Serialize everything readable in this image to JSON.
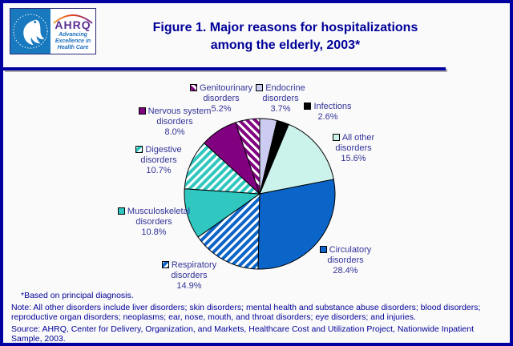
{
  "page": {
    "background": "#fafafa",
    "border_color": "#0000a0",
    "accent_navy": "#000099"
  },
  "logo": {
    "acronym": "AHRQ",
    "tagline_lines": [
      "Advancing",
      "Excellence in",
      "Health Care"
    ]
  },
  "title": {
    "line1": "Figure 1. Major reasons for hospitalizations",
    "line2": "among the elderly, 2003*"
  },
  "chart_data": {
    "type": "pie",
    "title": "Major reasons for hospitalizations among the elderly, 2003",
    "start_position": "12-o'clock, clockwise",
    "legend_position": "labels around pie with square markers",
    "slices": [
      {
        "id": "endocrine",
        "label_lines": [
          "Endocrine",
          "disorders"
        ],
        "pct_label": "3.7%",
        "value": 3.7,
        "fill": {
          "type": "solid",
          "color": "#ccccf2"
        }
      },
      {
        "id": "infections",
        "label_lines": [
          "Infections"
        ],
        "pct_label": "2.6%",
        "value": 2.6,
        "fill": {
          "type": "solid",
          "color": "#000000"
        }
      },
      {
        "id": "all_other",
        "label_lines": [
          "All other",
          "disorders"
        ],
        "pct_label": "15.6%",
        "value": 15.6,
        "fill": {
          "type": "solid",
          "color": "#ccf2ec"
        }
      },
      {
        "id": "circulatory",
        "label_lines": [
          "Circulatory",
          "disorders"
        ],
        "pct_label": "28.4%",
        "value": 28.4,
        "fill": {
          "type": "solid",
          "color": "#0b64c8"
        }
      },
      {
        "id": "respiratory",
        "label_lines": [
          "Respiratory",
          "disorders"
        ],
        "pct_label": "14.9%",
        "value": 14.9,
        "fill": {
          "type": "hatch",
          "bg": "#0b64c8",
          "fg": "#ffffff",
          "angle": 45
        }
      },
      {
        "id": "musculoskeletal",
        "label_lines": [
          "Musculoskeletal",
          "disorders"
        ],
        "pct_label": "10.8%",
        "value": 10.8,
        "fill": {
          "type": "solid",
          "color": "#2fc7c0"
        }
      },
      {
        "id": "digestive",
        "label_lines": [
          "Digestive",
          "disorders"
        ],
        "pct_label": "10.7%",
        "value": 10.7,
        "fill": {
          "type": "hatch",
          "bg": "#2fc7c0",
          "fg": "#ffffff",
          "angle": 45
        }
      },
      {
        "id": "nervous",
        "label_lines": [
          "Nervous system",
          "disorders"
        ],
        "pct_label": "8.0%",
        "value": 8.0,
        "fill": {
          "type": "solid",
          "color": "#800080"
        }
      },
      {
        "id": "genitourinary",
        "label_lines": [
          "Genitourinary",
          "disorders"
        ],
        "pct_label": "5.2%",
        "value": 5.2,
        "fill": {
          "type": "hatch",
          "bg": "#800080",
          "fg": "#ffffff",
          "angle": -45
        }
      }
    ]
  },
  "footnotes": {
    "diagnosis": "*Based on principal diagnosis.",
    "note": "Note: All other disorders include liver disorders; skin disorders; mental health and substance abuse disorders; blood disorders; reproductive organ disorders; neoplasms; ear, nose, mouth, and throat disorders; eye disorders; and injuries.",
    "source": "Source: AHRQ, Center for Delivery, Organization, and Markets, Healthcare Cost and Utilization Project, Nationwide Inpatient Sample, 2003."
  }
}
